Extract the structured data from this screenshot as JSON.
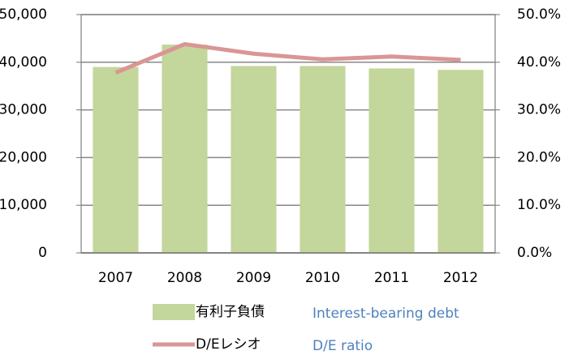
{
  "chart_data": {
    "type": "bar",
    "categories": [
      "2007",
      "2008",
      "2009",
      "2010",
      "2011",
      "2012"
    ],
    "series": [
      {
        "name": "有利子負債",
        "type": "bar",
        "color": "#c3d69b",
        "values": [
          39000,
          43700,
          39200,
          39200,
          38700,
          38400
        ]
      },
      {
        "name": "D/Eレシオ",
        "type": "line",
        "axis": "y2",
        "color": "#d99694",
        "values": [
          37.8,
          43.8,
          41.8,
          40.6,
          41.2,
          40.5
        ]
      }
    ],
    "annotations": [
      "Interest-bearing debt",
      "D/E ratio"
    ],
    "ylim": [
      0,
      50000
    ],
    "yticks": [
      0,
      {
        "value": 10000,
        "label": "10,000"
      },
      {
        "value": 20000,
        "label": "20,000"
      },
      {
        "value": 30000,
        "label": "30,000"
      },
      {
        "value": 40000,
        "label": "40,000"
      },
      {
        "value": 50000,
        "label": "50,000"
      }
    ],
    "y2lim": [
      0,
      50
    ],
    "y2ticks": [
      {
        "value": 0,
        "label": "0.0%"
      },
      {
        "value": 10,
        "label": "10.0%"
      },
      {
        "value": 20,
        "label": "20.0%"
      },
      {
        "value": 30,
        "label": "30.0%"
      },
      {
        "value": 40,
        "label": "40.0%"
      },
      {
        "value": 50,
        "label": "50.0%"
      }
    ],
    "grid": true
  }
}
